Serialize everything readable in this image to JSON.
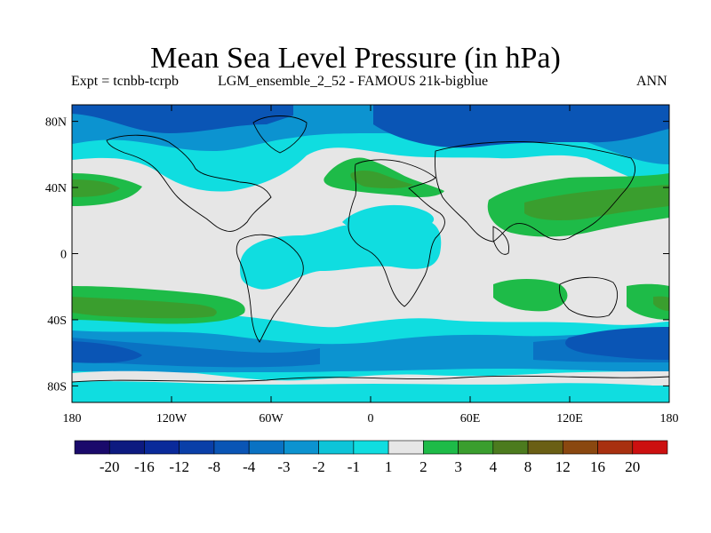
{
  "chart_data": {
    "type": "heatmap",
    "title": "Mean Sea Level Pressure (in hPa)",
    "subtitle_left": "Expt = tcnbb-tcrpb",
    "subtitle_center": "LGM_ensemble_2_52 - FAMOUS 21k-bigblue",
    "subtitle_right": "ANN",
    "x_axis": {
      "range": [
        -180,
        180
      ],
      "ticks": [
        {
          "value": -180,
          "label": "180"
        },
        {
          "value": -120,
          "label": "120W"
        },
        {
          "value": -60,
          "label": "60W"
        },
        {
          "value": 0,
          "label": "0"
        },
        {
          "value": 60,
          "label": "60E"
        },
        {
          "value": 120,
          "label": "120E"
        },
        {
          "value": 180,
          "label": "180"
        }
      ]
    },
    "y_axis": {
      "range": [
        -90,
        90
      ],
      "ticks": [
        {
          "value": 80,
          "label": "80N"
        },
        {
          "value": 40,
          "label": "40N"
        },
        {
          "value": 0,
          "label": "0"
        },
        {
          "value": -40,
          "label": "40S"
        },
        {
          "value": -80,
          "label": "80S"
        }
      ]
    },
    "colorbar": {
      "labels": [
        "-20",
        "-16",
        "-12",
        "-8",
        "-4",
        "-3",
        "-2",
        "-1",
        "1",
        "2",
        "3",
        "4",
        "8",
        "12",
        "16",
        "20"
      ],
      "colors": [
        "#1a0a6b",
        "#0d1a80",
        "#0a2a9a",
        "#0a3fa8",
        "#0a55b5",
        "#0a72c3",
        "#0c93d0",
        "#0dc4d8",
        "#10dde0",
        "#e6e6e6",
        "#1ebb48",
        "#3a9e2e",
        "#4c7b1e",
        "#6a5f14",
        "#8a4810",
        "#a83010",
        "#cc1010"
      ]
    },
    "regions": [
      {
        "level": "-4",
        "lon": [
          -180,
          180
        ],
        "lat": [
          -71,
          -50
        ]
      },
      {
        "level": "-8",
        "lon": [
          125,
          180
        ],
        "lat": [
          -64,
          -55
        ]
      },
      {
        "level": "-8",
        "lon": [
          -180,
          -140
        ],
        "lat": [
          -62,
          -53
        ]
      },
      {
        "level": "-3",
        "lon": [
          -180,
          -150
        ],
        "lat": [
          75,
          90
        ]
      },
      {
        "level": "-4",
        "lon": [
          -20,
          90
        ],
        "lat": [
          70,
          85
        ]
      },
      {
        "level": "-8",
        "lon": [
          0,
          60
        ],
        "lat": [
          75,
          82
        ]
      },
      {
        "level": "3",
        "lon": [
          -180,
          -160
        ],
        "lat": [
          30,
          45
        ]
      },
      {
        "level": "3",
        "lon": [
          -150,
          -110
        ],
        "lat": [
          -40,
          -25
        ]
      },
      {
        "level": "3",
        "lon": [
          -30,
          20
        ],
        "lat": [
          35,
          60
        ]
      },
      {
        "level": "3",
        "lon": [
          90,
          180
        ],
        "lat": [
          30,
          45
        ]
      },
      {
        "level": "3",
        "lon": [
          -180,
          -160
        ],
        "lat": [
          -38,
          -25
        ]
      },
      {
        "level": "2",
        "lon": [
          30,
          80
        ],
        "lat": [
          -40,
          -20
        ]
      },
      {
        "level": "2",
        "lon": [
          165,
          180
        ],
        "lat": [
          -40,
          -25
        ]
      }
    ]
  }
}
